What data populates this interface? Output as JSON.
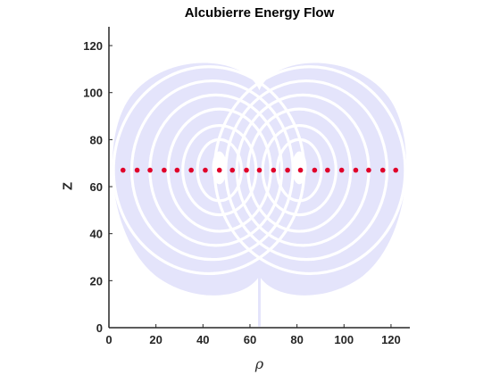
{
  "chart_data": {
    "type": "scatter",
    "title": "Alcubierre Energy Flow",
    "xlabel": "ρ",
    "ylabel": "Z",
    "xlim": [
      0,
      128
    ],
    "ylim": [
      0,
      128
    ],
    "x_ticks": [
      0,
      20,
      40,
      60,
      80,
      100,
      120
    ],
    "y_ticks": [
      0,
      20,
      40,
      60,
      80,
      100,
      120
    ],
    "grid": false,
    "background_field": {
      "description_color": "#e4e4fb",
      "center": [
        64,
        64
      ]
    },
    "series": [
      {
        "color": "#e0002a",
        "x": [
          6,
          12,
          17.5,
          23.5,
          29,
          35,
          41,
          47,
          52.5,
          58.5,
          64,
          70,
          76,
          81.5,
          87.5,
          93,
          99,
          105,
          110.5,
          116.5,
          122
        ],
        "y": [
          67,
          67,
          67,
          67,
          67,
          67,
          67,
          67,
          67,
          67,
          67,
          67,
          67,
          67,
          67,
          67,
          67,
          67,
          67,
          67,
          67
        ]
      }
    ]
  },
  "colors": {
    "axis": "#262626",
    "flow": "#e4e4fb",
    "points": "#e0002a"
  }
}
